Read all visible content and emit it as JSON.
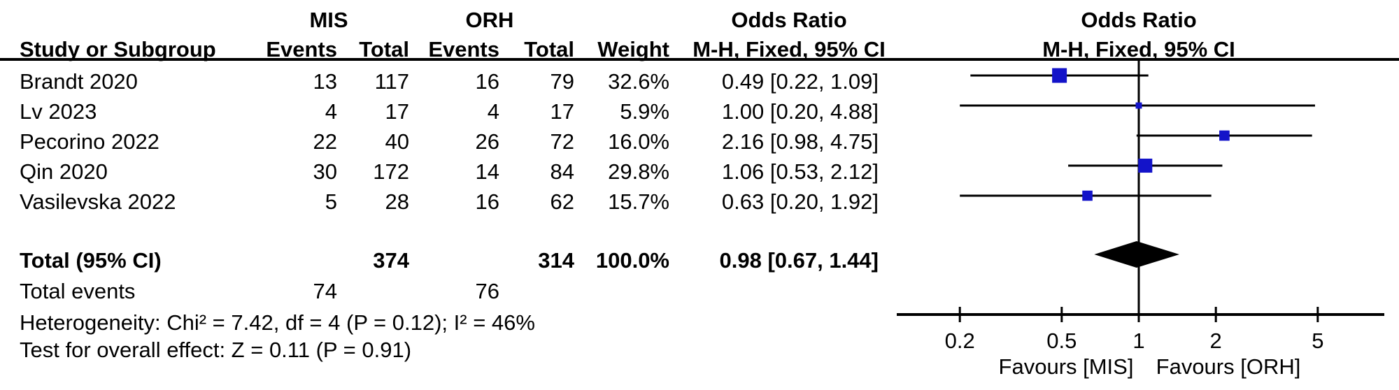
{
  "header": {
    "study_col": "Study or Subgroup",
    "group_mis": "MIS",
    "group_orh": "ORH",
    "events": "Events",
    "total": "Total",
    "weight": "Weight",
    "or_title": "Odds Ratio",
    "or_method": "M-H, Fixed, 95% CI"
  },
  "colors": {
    "marker": "#1313c9",
    "diamond": "#000000",
    "line": "#000000",
    "text": "#000000"
  },
  "chart_data": {
    "type": "forest",
    "effect_measure": "Odds Ratio",
    "method": "M-H, Fixed, 95% CI",
    "x_scale": "log",
    "axis_ticks": [
      "0.2",
      "0.5",
      "1",
      "2",
      "5"
    ],
    "axis_range": [
      0.2,
      5
    ],
    "null_line": 1,
    "favours_left": "Favours [MIS]",
    "favours_right": "Favours [ORH]",
    "studies": [
      {
        "name": "Brandt 2020",
        "mis_events": "13",
        "mis_total": "117",
        "orh_events": "16",
        "orh_total": "79",
        "weight": "32.6%",
        "weight_pct": 32.6,
        "or": 0.49,
        "ci_low": 0.22,
        "ci_high": 1.09,
        "or_text": "0.49 [0.22, 1.09]"
      },
      {
        "name": "Lv 2023",
        "mis_events": "4",
        "mis_total": "17",
        "orh_events": "4",
        "orh_total": "17",
        "weight": "5.9%",
        "weight_pct": 5.9,
        "or": 1.0,
        "ci_low": 0.2,
        "ci_high": 4.88,
        "or_text": "1.00 [0.20, 4.88]"
      },
      {
        "name": "Pecorino 2022",
        "mis_events": "22",
        "mis_total": "40",
        "orh_events": "26",
        "orh_total": "72",
        "weight": "16.0%",
        "weight_pct": 16.0,
        "or": 2.16,
        "ci_low": 0.98,
        "ci_high": 4.75,
        "or_text": "2.16 [0.98, 4.75]"
      },
      {
        "name": "Qin 2020",
        "mis_events": "30",
        "mis_total": "172",
        "orh_events": "14",
        "orh_total": "84",
        "weight": "29.8%",
        "weight_pct": 29.8,
        "or": 1.06,
        "ci_low": 0.53,
        "ci_high": 2.12,
        "or_text": "1.06 [0.53, 2.12]"
      },
      {
        "name": "Vasilevska 2022",
        "mis_events": "5",
        "mis_total": "28",
        "orh_events": "16",
        "orh_total": "62",
        "weight": "15.7%",
        "weight_pct": 15.7,
        "or": 0.63,
        "ci_low": 0.2,
        "ci_high": 1.92,
        "or_text": "0.63 [0.20, 1.92]"
      }
    ],
    "total": {
      "label": "Total (95% CI)",
      "mis_total": "374",
      "orh_total": "314",
      "weight": "100.0%",
      "or": 0.98,
      "ci_low": 0.67,
      "ci_high": 1.44,
      "or_text": "0.98 [0.67, 1.44]"
    },
    "total_events": {
      "label": "Total events",
      "mis": "74",
      "orh": "76"
    },
    "heterogeneity": "Heterogeneity: Chi² = 7.42, df = 4 (P = 0.12); I² = 46%",
    "overall_effect": "Test for overall effect: Z = 0.11 (P = 0.91)"
  }
}
